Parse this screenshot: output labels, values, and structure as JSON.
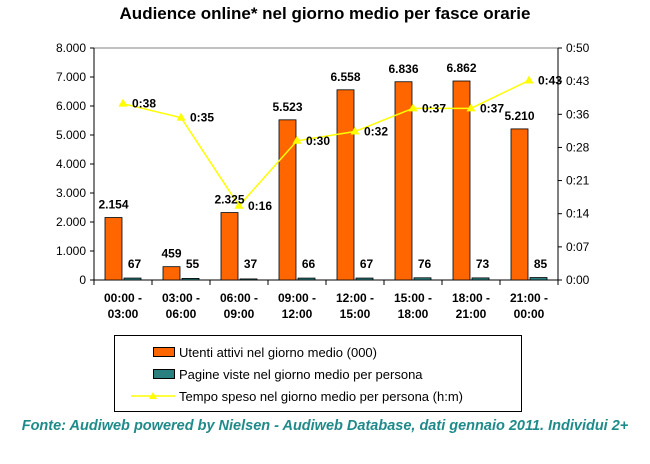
{
  "title": "Audience online* nel giorno medio per fasce orarie",
  "source_note": "Fonte: Audiweb powered by Nielsen - Audiweb Database, dati gennaio 2011. Individui 2+",
  "colors": {
    "bar_users": "#ff6600",
    "bar_pages": "#2a7f7f",
    "line_time": "#ffff00",
    "source_text": "#1f8a8a"
  },
  "chart_data": {
    "type": "bar",
    "categories": [
      [
        "00:00 -",
        "03:00"
      ],
      [
        "03:00 -",
        "06:00"
      ],
      [
        "06:00 -",
        "09:00"
      ],
      [
        "09:00 -",
        "12:00"
      ],
      [
        "12:00 -",
        "15:00"
      ],
      [
        "15:00 -",
        "18:00"
      ],
      [
        "18:00 -",
        "21:00"
      ],
      [
        "21:00 -",
        "00:00"
      ]
    ],
    "series": [
      {
        "name": "Utenti attivi nel giorno medio (000)",
        "type": "bar",
        "axis": "left",
        "values": [
          2154,
          459,
          2325,
          5523,
          6558,
          6836,
          6862,
          5210
        ],
        "labels": [
          "2.154",
          "459",
          "2.325",
          "5.523",
          "6.558",
          "6.836",
          "6.862",
          "5.210"
        ]
      },
      {
        "name": "Pagine viste nel giorno medio per persona",
        "type": "bar",
        "axis": "left",
        "values": [
          67,
          55,
          37,
          66,
          67,
          76,
          73,
          85
        ],
        "labels": [
          "67",
          "55",
          "37",
          "66",
          "67",
          "76",
          "73",
          "85"
        ]
      },
      {
        "name": "Tempo speso nel giorno medio per persona (h:m)",
        "type": "line",
        "axis": "right",
        "values_minutes": [
          38,
          35,
          16,
          30,
          32,
          37,
          37,
          43
        ],
        "labels": [
          "0:38",
          "0:35",
          "0:16",
          "0:30",
          "0:32",
          "0:37",
          "0:37",
          "0:43"
        ]
      }
    ],
    "y_left": {
      "lim": [
        0,
        8000
      ],
      "ticks": [
        0,
        1000,
        2000,
        3000,
        4000,
        5000,
        6000,
        7000,
        8000
      ],
      "tick_labels": [
        "0",
        "1.000",
        "2.000",
        "3.000",
        "4.000",
        "5.000",
        "6.000",
        "7.000",
        "8.000"
      ]
    },
    "y_right": {
      "lim_minutes": [
        0,
        50
      ],
      "ticks_minutes": [
        0,
        7.14,
        14.29,
        21.43,
        28.57,
        35.71,
        42.86,
        50
      ],
      "tick_labels": [
        "0:00",
        "0:07",
        "0:14",
        "0:21",
        "0:28",
        "0:36",
        "0:43",
        "0:50"
      ]
    },
    "grid": false,
    "legend_position": "bottom"
  }
}
